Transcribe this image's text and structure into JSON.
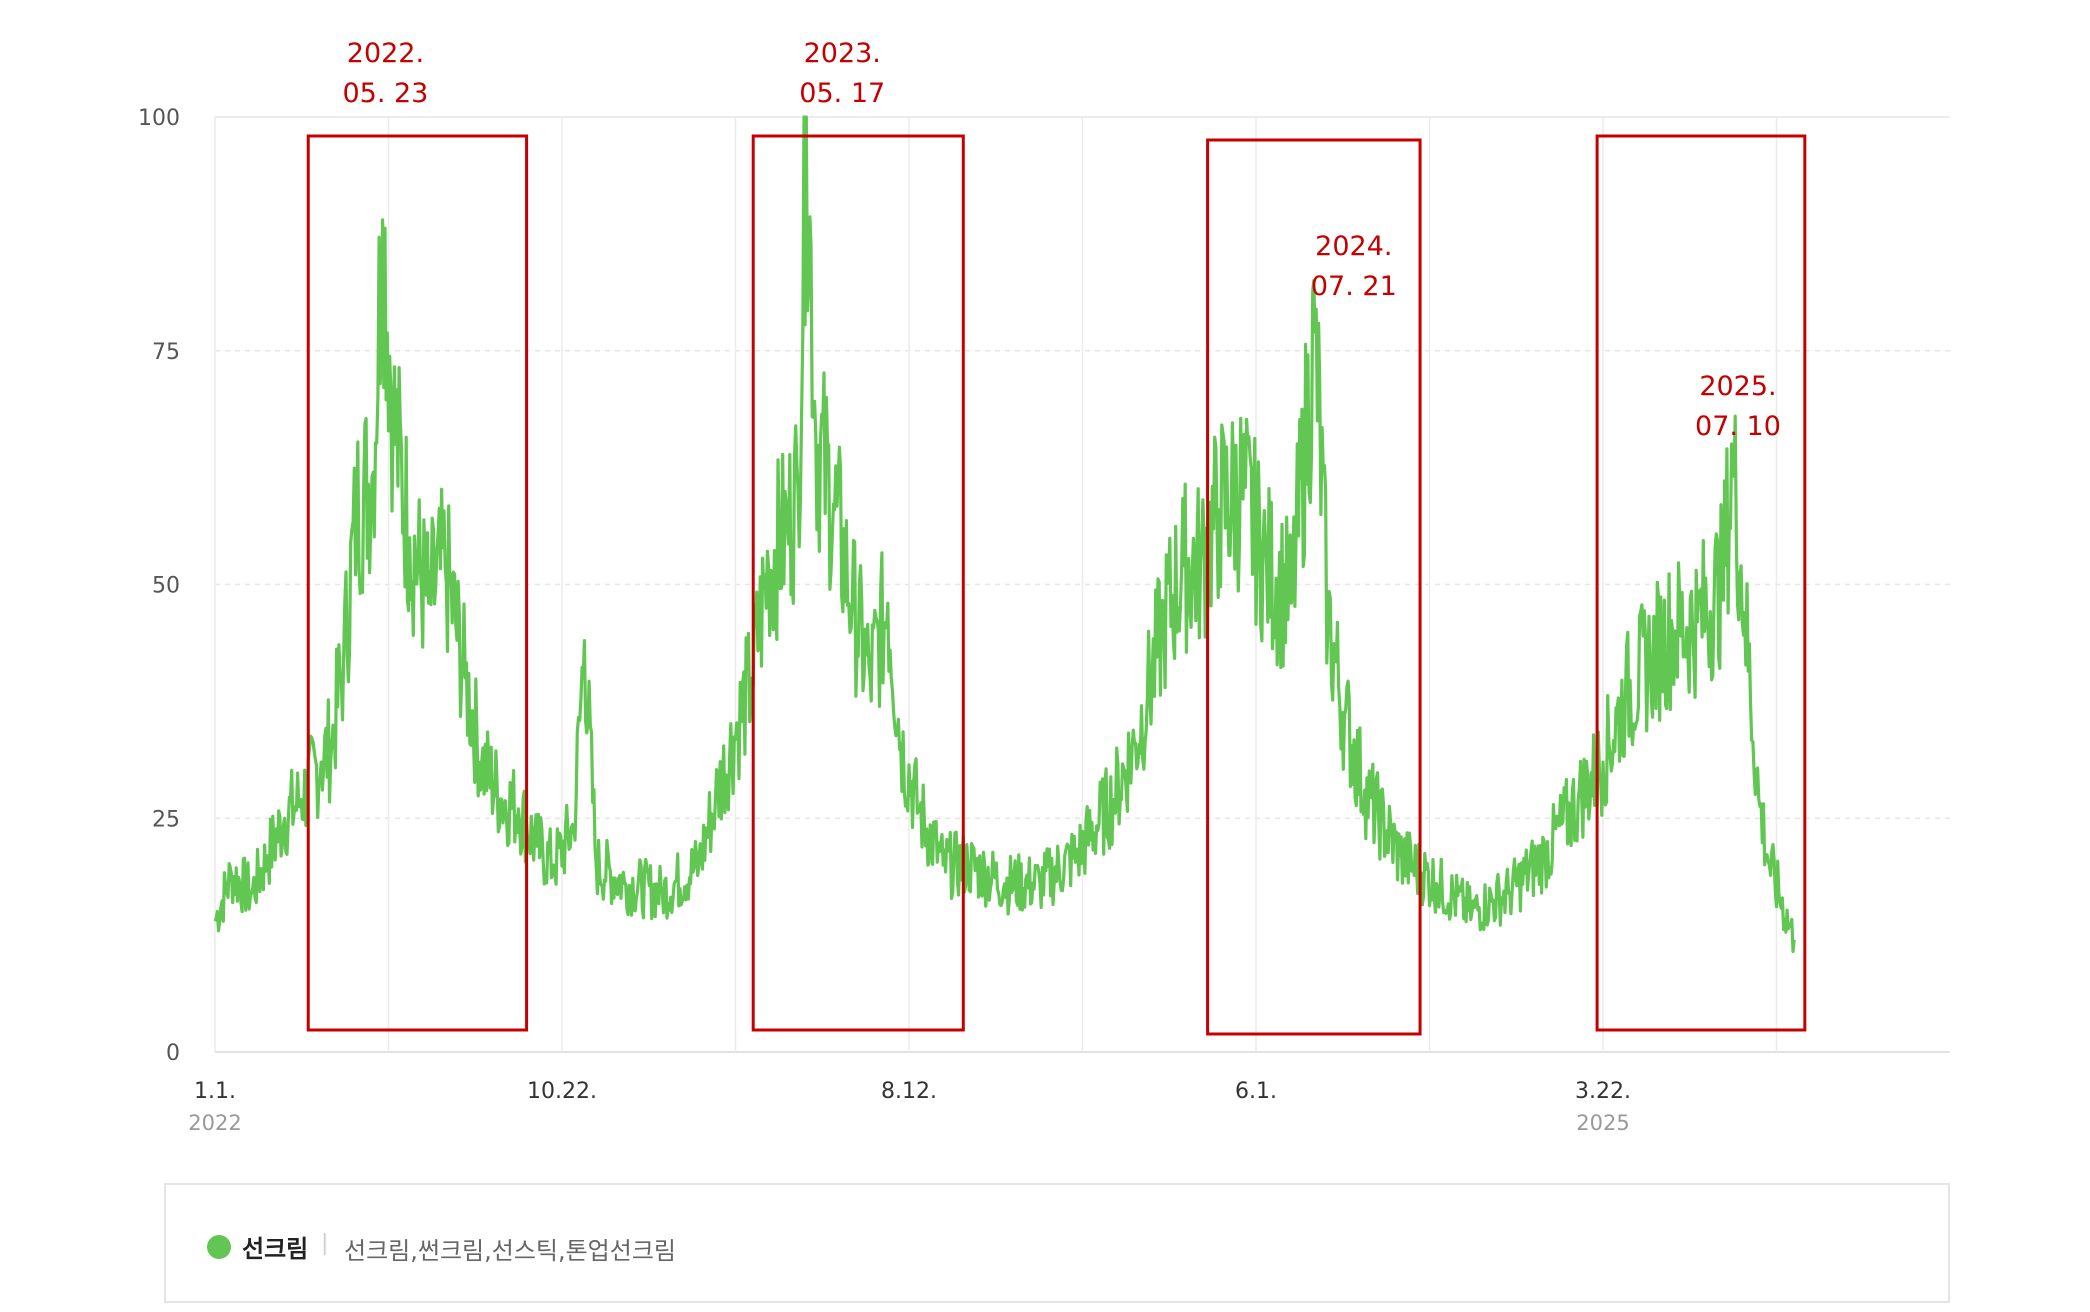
{
  "chart_data": {
    "type": "line",
    "y_ticks": [
      "0",
      "25",
      "50",
      "75",
      "100"
    ],
    "ylim": [
      0,
      100
    ],
    "x_ticks": [
      {
        "label": "1.1.",
        "sub": "2022",
        "date": "2022-01-01"
      },
      {
        "label": "10.22.",
        "sub": "",
        "date": "2022-10-22"
      },
      {
        "label": "8.12.",
        "sub": "",
        "date": "2023-08-12"
      },
      {
        "label": "6.1.",
        "sub": "",
        "date": "2024-06-01"
      },
      {
        "label": "3.22.",
        "sub": "2025",
        "date": "2025-03-22"
      }
    ],
    "xlim": [
      "2022-01-01",
      "2025-08-31"
    ],
    "grid": true,
    "series": [
      {
        "name": "선크림",
        "keywords": "선크림,썬크림,선스틱,톤업선크림",
        "color": "#61c652",
        "points": [
          [
            "2022-01-01",
            14
          ],
          [
            "2022-01-15",
            19
          ],
          [
            "2022-02-01",
            17
          ],
          [
            "2022-02-15",
            21
          ],
          [
            "2022-03-01",
            25
          ],
          [
            "2022-03-15",
            27
          ],
          [
            "2022-04-01",
            31
          ],
          [
            "2022-04-10",
            33
          ],
          [
            "2022-04-20",
            42
          ],
          [
            "2022-05-01",
            58
          ],
          [
            "2022-05-15",
            62
          ],
          [
            "2022-05-23",
            89
          ],
          [
            "2022-06-01",
            68
          ],
          [
            "2022-06-15",
            55
          ],
          [
            "2022-07-01",
            48
          ],
          [
            "2022-07-15",
            52
          ],
          [
            "2022-08-01",
            40
          ],
          [
            "2022-08-15",
            31
          ],
          [
            "2022-09-01",
            27
          ],
          [
            "2022-09-15",
            26
          ],
          [
            "2022-10-01",
            22
          ],
          [
            "2022-10-15",
            20
          ],
          [
            "2022-11-01",
            24
          ],
          [
            "2022-11-10",
            44
          ],
          [
            "2022-11-20",
            20
          ],
          [
            "2022-12-15",
            18
          ],
          [
            "2023-01-15",
            17
          ],
          [
            "2023-02-15",
            20
          ],
          [
            "2023-03-01",
            27
          ],
          [
            "2023-03-20",
            35
          ],
          [
            "2023-04-01",
            40
          ],
          [
            "2023-04-15",
            52
          ],
          [
            "2023-05-01",
            56
          ],
          [
            "2023-05-10",
            60
          ],
          [
            "2023-05-17",
            100
          ],
          [
            "2023-05-25",
            66
          ],
          [
            "2023-06-10",
            58
          ],
          [
            "2023-06-25",
            48
          ],
          [
            "2023-07-10",
            40
          ],
          [
            "2023-07-25",
            48
          ],
          [
            "2023-08-05",
            33
          ],
          [
            "2023-08-20",
            26
          ],
          [
            "2023-09-10",
            20
          ],
          [
            "2023-10-01",
            20
          ],
          [
            "2023-11-01",
            18
          ],
          [
            "2023-12-01",
            18
          ],
          [
            "2024-01-01",
            21
          ],
          [
            "2024-02-01",
            27
          ],
          [
            "2024-02-20",
            33
          ],
          [
            "2024-03-01",
            38
          ],
          [
            "2024-03-15",
            46
          ],
          [
            "2024-04-01",
            52
          ],
          [
            "2024-04-15",
            52
          ],
          [
            "2024-05-01",
            58
          ],
          [
            "2024-05-20",
            60
          ],
          [
            "2024-06-10",
            52
          ],
          [
            "2024-07-01",
            48
          ],
          [
            "2024-07-21",
            77
          ],
          [
            "2024-08-01",
            46
          ],
          [
            "2024-08-15",
            36
          ],
          [
            "2024-09-01",
            28
          ],
          [
            "2024-10-01",
            21
          ],
          [
            "2024-11-01",
            18
          ],
          [
            "2024-12-01",
            15
          ],
          [
            "2025-01-01",
            17
          ],
          [
            "2025-02-01",
            21
          ],
          [
            "2025-03-01",
            27
          ],
          [
            "2025-03-22",
            31
          ],
          [
            "2025-04-10",
            38
          ],
          [
            "2025-05-01",
            42
          ],
          [
            "2025-05-20",
            45
          ],
          [
            "2025-06-10",
            46
          ],
          [
            "2025-07-01",
            50
          ],
          [
            "2025-07-10",
            63
          ],
          [
            "2025-07-20",
            47
          ],
          [
            "2025-08-01",
            27
          ],
          [
            "2025-08-10",
            20
          ],
          [
            "2025-08-31",
            12
          ]
        ]
      }
    ],
    "annotations": [
      {
        "line1": "2022.",
        "line2": "05. 23",
        "box": [
          "2022-03-21",
          "2022-09-22"
        ],
        "label_anchor": "top"
      },
      {
        "line1": "2023.",
        "line2": "05. 17",
        "box": [
          "2023-04-02",
          "2023-09-27"
        ],
        "label_anchor": "top"
      },
      {
        "line1": "2024.",
        "line2": "07. 21",
        "box": [
          "2024-04-21",
          "2024-10-18"
        ],
        "label_anchor": "inside"
      },
      {
        "line1": "2025.",
        "line2": "07. 10",
        "box": [
          "2025-03-17",
          "2025-09-09"
        ],
        "label_anchor": "inside"
      }
    ]
  },
  "legend": {
    "name": "선크림",
    "separator": "|",
    "keywords": "선크림,썬크림,선스틱,톤업선크림",
    "dot_color": "#61c652"
  }
}
